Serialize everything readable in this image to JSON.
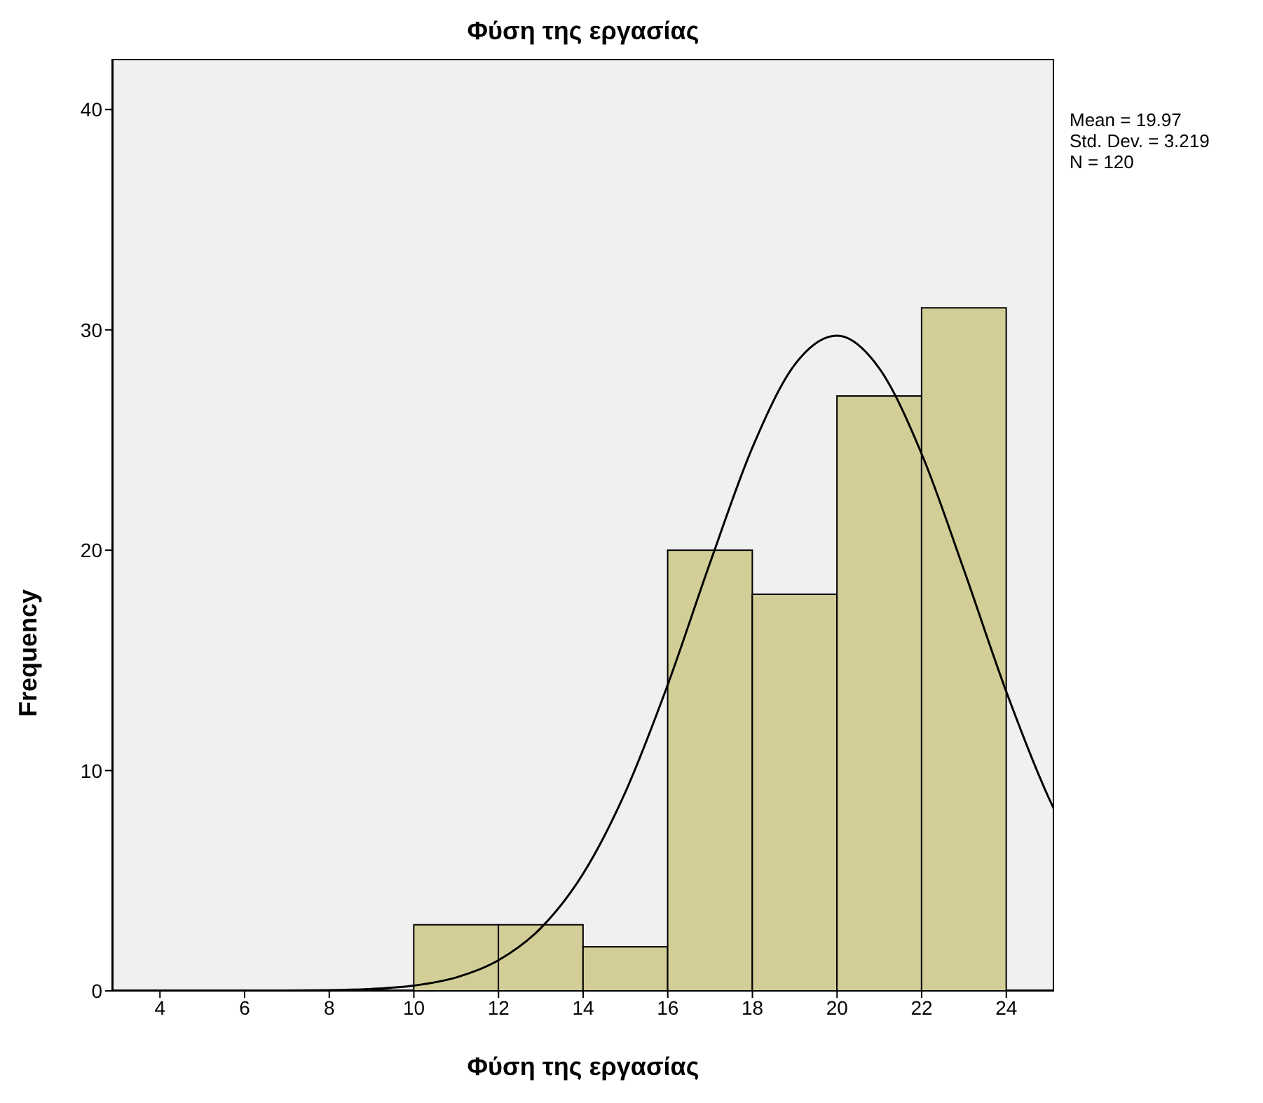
{
  "chart_data": {
    "type": "histogram",
    "title": "Φύση της εργασίας",
    "xlabel": "Φύση της εργασίας",
    "ylabel": "Frequency",
    "bins": [
      10,
      12,
      14,
      16,
      18,
      20,
      22,
      24
    ],
    "values": [
      3,
      3,
      2,
      20,
      18,
      27,
      31
    ],
    "color": "#d3ce97",
    "series": [
      {
        "type": "line",
        "color": "#000000",
        "x": [
          2.87,
          4,
          6,
          8,
          9,
          10,
          11,
          12,
          13,
          14,
          15,
          16,
          17,
          18,
          19,
          20,
          21,
          22,
          23,
          24,
          25,
          25.13
        ],
        "values": [
          0,
          0,
          0,
          0.03,
          0.09,
          0.24,
          0.61,
          1.39,
          2.85,
          5.32,
          9.03,
          13.9,
          19.43,
          24.66,
          28.42,
          29.74,
          28.25,
          24.37,
          19.1,
          13.58,
          8.77,
          8.23
        ]
      }
    ],
    "xlim": [
      2.87,
      25.13
    ],
    "xticks": [
      4,
      6,
      8,
      10,
      12,
      14,
      16,
      18,
      20,
      22,
      24
    ],
    "ylim": [
      0,
      42.3
    ],
    "yticks": [
      0,
      10,
      20,
      30,
      40
    ],
    "grid": false,
    "legend": false,
    "annotations": [
      "Mean = 19.97",
      "Std. Dev. = 3.219",
      "N = 120"
    ]
  }
}
